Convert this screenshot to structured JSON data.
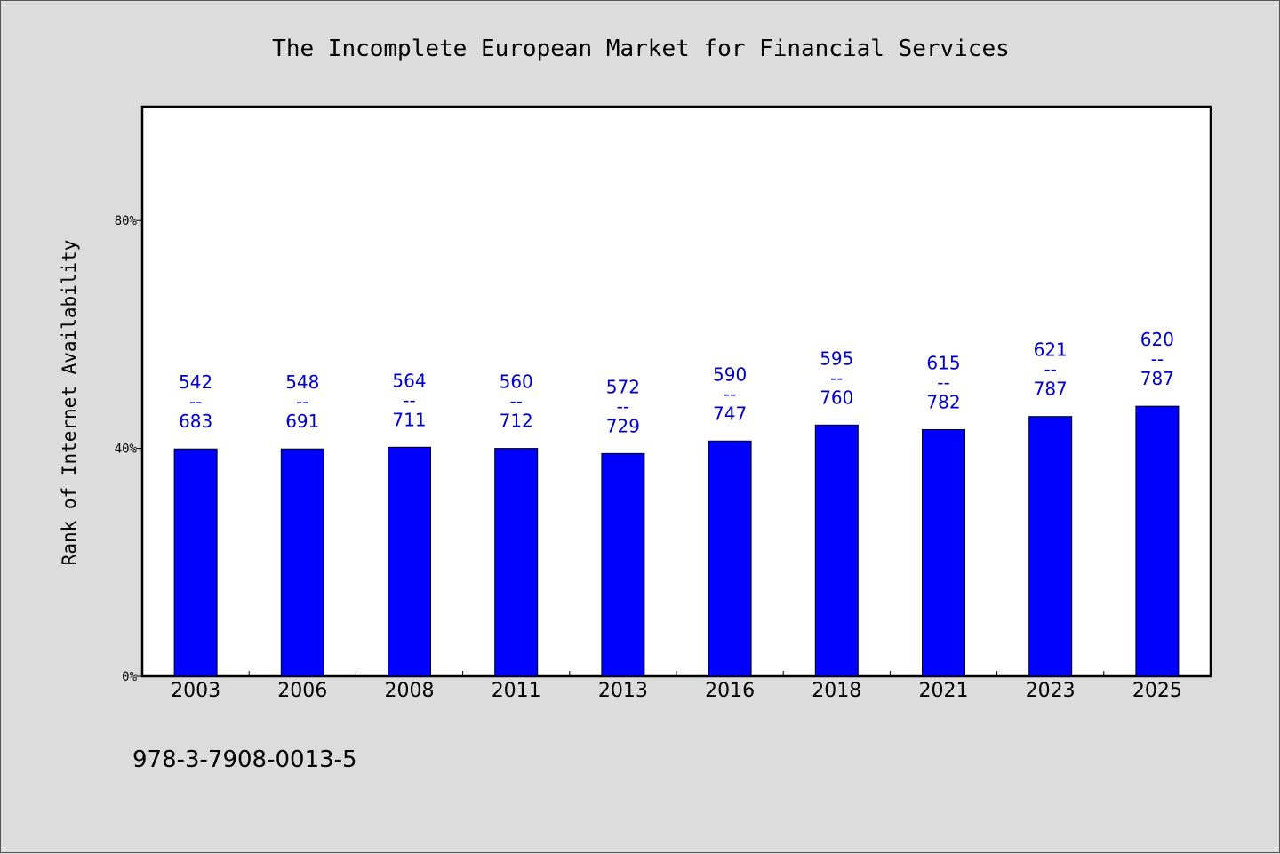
{
  "chart_data": {
    "type": "bar",
    "title": "The Incomplete European Market for Financial Services",
    "xlabel": "",
    "ylabel": "Rank of Internet Availability",
    "ylim": [
      0,
      100
    ],
    "yticks": [
      0,
      40,
      80
    ],
    "ytick_labels": [
      "0%",
      "40%",
      "80%"
    ],
    "categories": [
      "2003",
      "2006",
      "2008",
      "2011",
      "2013",
      "2016",
      "2018",
      "2021",
      "2023",
      "2025"
    ],
    "values": [
      39.9,
      39.9,
      40.2,
      40.0,
      39.1,
      41.3,
      44.1,
      43.3,
      45.6,
      47.4
    ],
    "labels_top": [
      "542",
      "548",
      "564",
      "560",
      "572",
      "590",
      "595",
      "615",
      "621",
      "620"
    ],
    "labels_sep": "--",
    "labels_bottom": [
      "683",
      "691",
      "711",
      "712",
      "729",
      "747",
      "760",
      "782",
      "787",
      "787"
    ],
    "bar_color": "#0000ff",
    "label_color": "#0000cc",
    "grid": false,
    "legend": "none"
  },
  "footer": {
    "isbn": "978-3-7908-0013-5"
  }
}
